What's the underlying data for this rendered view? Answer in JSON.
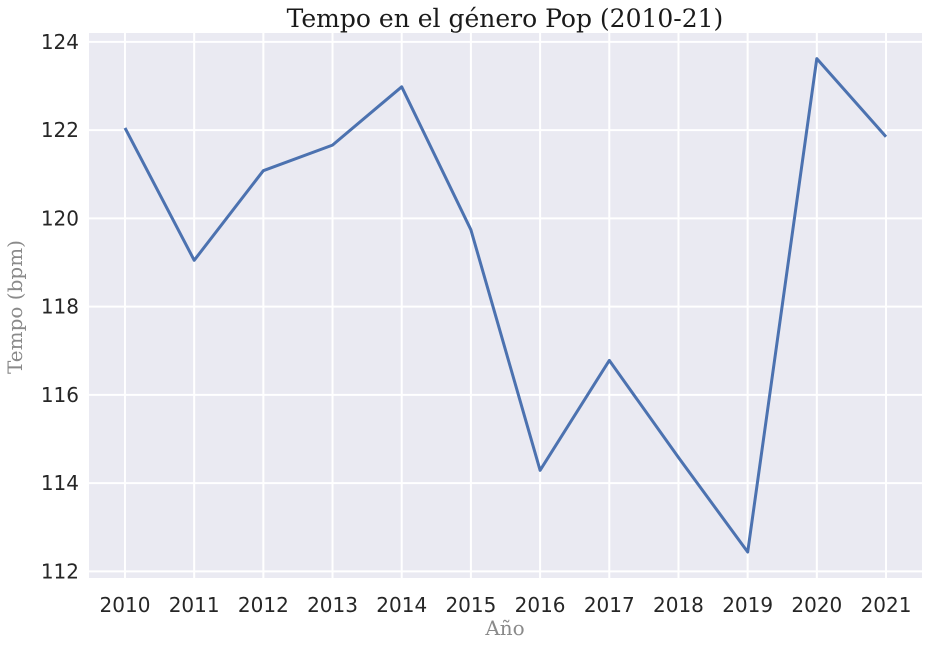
{
  "chart_data": {
    "type": "line",
    "title": "Tempo en el género Pop (2010-21)",
    "xlabel": "Año",
    "ylabel": "Tempo (bpm)",
    "x": [
      2010,
      2011,
      2012,
      2013,
      2014,
      2015,
      2016,
      2017,
      2018,
      2019,
      2020,
      2021
    ],
    "series": [
      {
        "values": [
          122.05,
          119.05,
          121.08,
          121.66,
          122.98,
          119.74,
          114.29,
          116.78,
          114.58,
          112.44,
          123.62,
          121.85
        ]
      }
    ],
    "xlim": [
      2009.48,
      2021.52
    ],
    "ylim": [
      111.85,
      124.2
    ],
    "yticks": [
      112,
      114,
      116,
      118,
      120,
      122,
      124
    ],
    "grid": true,
    "style": {
      "background": "#EAEAF2",
      "grid_color": "#FFFFFF",
      "line_color": "#4C72B0"
    }
  }
}
